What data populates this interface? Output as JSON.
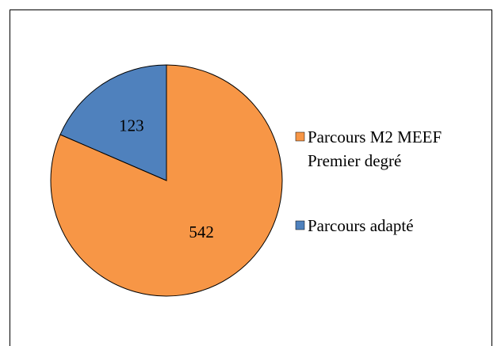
{
  "chart_data": {
    "type": "pie",
    "categories": [
      "Parcours M2 MEEF Premier degré",
      "Parcours adapté"
    ],
    "values": [
      542,
      123
    ],
    "colors": [
      "#f79646",
      "#4f81bd"
    ]
  }
}
